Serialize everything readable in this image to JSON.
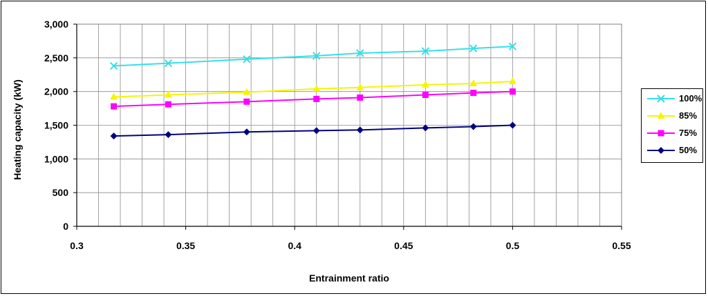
{
  "chart_data": {
    "type": "line",
    "title": "",
    "xlabel": "Entrainment ratio",
    "ylabel": "Heating capacity (kW)",
    "xlim": [
      0.3,
      0.55
    ],
    "ylim": [
      0,
      3000
    ],
    "x_ticks": [
      "0.3",
      "0.35",
      "0.4",
      "0.45",
      "0.5",
      "0.55"
    ],
    "x_tick_values": [
      0.3,
      0.35,
      0.4,
      0.45,
      0.5,
      0.55
    ],
    "y_ticks": [
      "0",
      "500",
      "1,000",
      "1,500",
      "2,000",
      "2,500",
      "3,000"
    ],
    "y_tick_values": [
      0,
      500,
      1000,
      1500,
      2000,
      2500,
      3000
    ],
    "grid": true,
    "legend_position": "right",
    "x": [
      0.317,
      0.342,
      0.378,
      0.41,
      0.43,
      0.46,
      0.482,
      0.5
    ],
    "series": [
      {
        "name": "100%",
        "marker": "x",
        "color": "#33e0e8",
        "values": [
          2380,
          2420,
          2480,
          2530,
          2570,
          2600,
          2640,
          2670
        ]
      },
      {
        "name": "85%",
        "marker": "triangle",
        "color": "#f5f500",
        "values": [
          1920,
          1950,
          1990,
          2040,
          2060,
          2100,
          2120,
          2150
        ]
      },
      {
        "name": "75%",
        "marker": "square",
        "color": "#ff00ff",
        "values": [
          1780,
          1810,
          1850,
          1890,
          1910,
          1950,
          1980,
          2000
        ]
      },
      {
        "name": "50%",
        "marker": "diamond",
        "color": "#000080",
        "values": [
          1340,
          1360,
          1400,
          1420,
          1430,
          1460,
          1480,
          1500
        ]
      }
    ]
  }
}
